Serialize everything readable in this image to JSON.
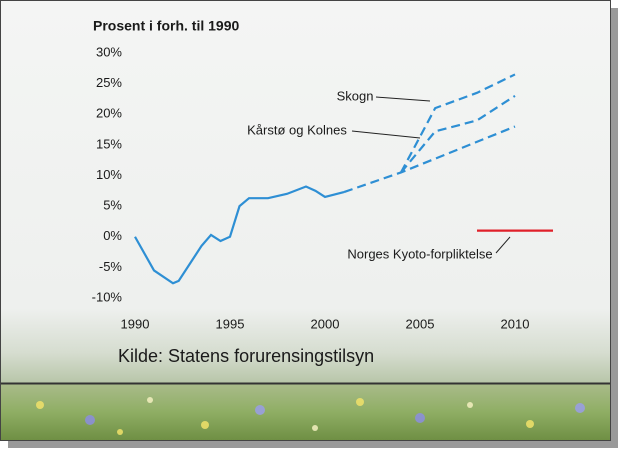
{
  "chart_data": {
    "type": "line",
    "subtitle": "Prosent i forh. til 1990",
    "source": "Kilde: Statens forurensingstilsyn",
    "xlim": [
      1990,
      2012
    ],
    "xticks": [
      1990,
      1995,
      2000,
      2005,
      2010
    ],
    "ylim": [
      -10,
      30
    ],
    "yticks": [
      {
        "value": -10,
        "label": "-10%"
      },
      {
        "value": -5,
        "label": "-5%"
      },
      {
        "value": 0,
        "label": "0%"
      },
      {
        "value": 5,
        "label": "5%"
      },
      {
        "value": 10,
        "label": "10%"
      },
      {
        "value": 15,
        "label": "15%"
      },
      {
        "value": 20,
        "label": "20%"
      },
      {
        "value": 25,
        "label": "25%"
      },
      {
        "value": 30,
        "label": "30%"
      }
    ],
    "series": [
      {
        "color": "#2e8fd4",
        "dashed": false,
        "x": [
          1990,
          1991,
          1992,
          1992.3,
          1993.5,
          1994,
          1994.5,
          1995,
          1995.5,
          1996,
          1997,
          1998,
          1999,
          1999.5,
          2000,
          2001
        ],
        "values": [
          0,
          -5.5,
          -7.6,
          -7.2,
          -1.5,
          0.3,
          -0.7,
          0,
          5,
          6.3,
          6.3,
          7,
          8.2,
          7.5,
          6.5,
          7.3
        ]
      },
      {
        "color": "#2e8fd4",
        "dashed": true,
        "x": [
          2001,
          2004,
          2010
        ],
        "values": [
          7.3,
          10.5,
          18
        ]
      },
      {
        "name": "Kårstø og Kolnes",
        "color": "#2e8fd4",
        "dashed": true,
        "x": [
          2004,
          2005.8,
          2008,
          2010
        ],
        "values": [
          10.5,
          17.2,
          19,
          23
        ]
      },
      {
        "name": "Skogn",
        "color": "#2e8fd4",
        "dashed": true,
        "x": [
          2004,
          2005.8,
          2008,
          2010
        ],
        "values": [
          10.5,
          21,
          23.5,
          26.5
        ]
      },
      {
        "name": "Norges Kyoto-forpliktelse",
        "color": "#e0202a",
        "dashed": false,
        "x": [
          2008,
          2012
        ],
        "values": [
          1,
          1
        ]
      }
    ]
  }
}
